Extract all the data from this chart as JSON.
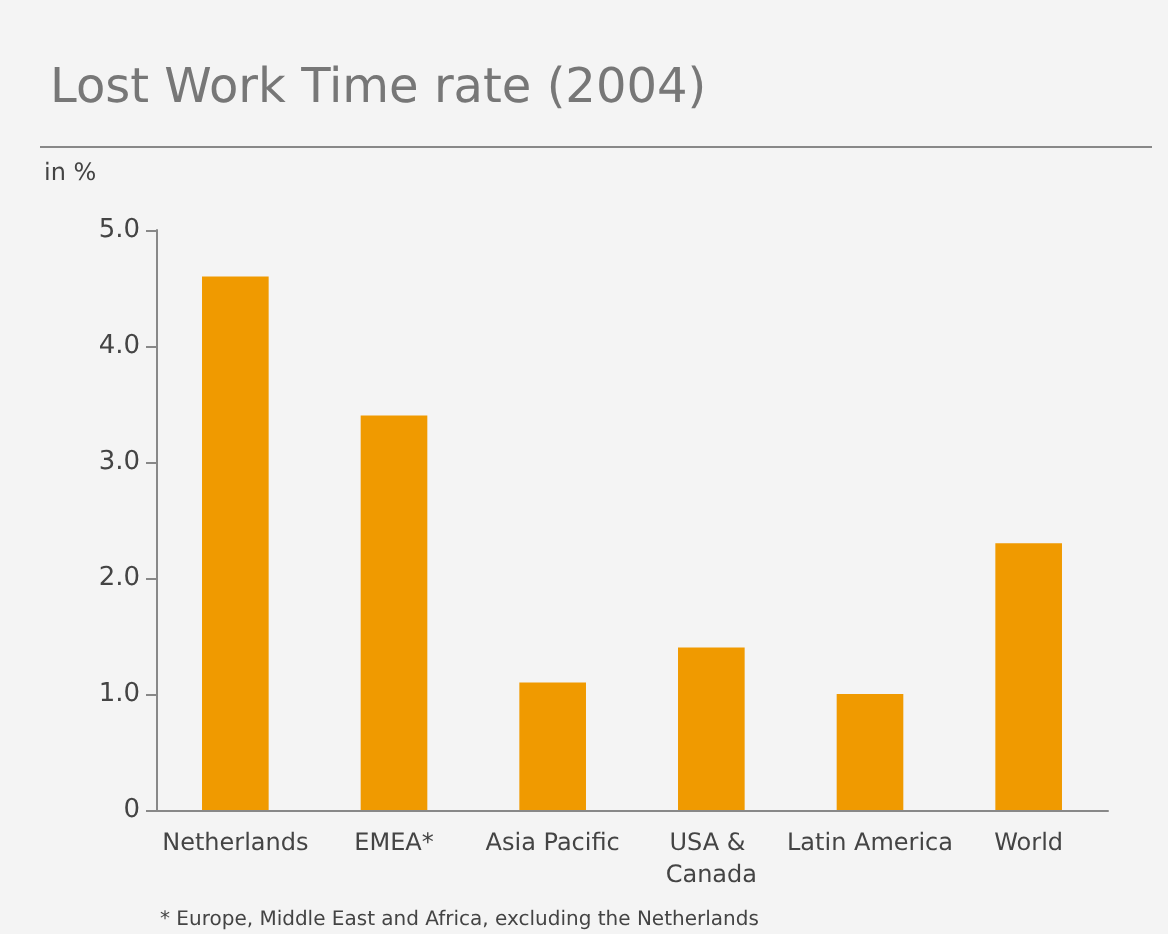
{
  "chart_data": {
    "type": "bar",
    "title": "Lost Work Time rate (2004)",
    "ylabel": "in %",
    "categories": [
      "Netherlands",
      "EMEA*",
      "Asia Pacific",
      "USA & Canada",
      "Latin America",
      "World"
    ],
    "values": [
      4.6,
      3.4,
      1.1,
      1.4,
      1.0,
      2.3
    ],
    "color": "#f09a00",
    "ylim": [
      0,
      5
    ],
    "yticks": [
      0,
      {
        "value": 1,
        "label": "1.0"
      },
      {
        "value": 2,
        "label": "2.0"
      },
      {
        "value": 3,
        "label": "3.0"
      },
      {
        "value": 4,
        "label": "4.0"
      },
      {
        "value": 5,
        "label": "5.0"
      }
    ],
    "grid": false,
    "annotations": [
      "* Europe, Middle East and Africa, excluding the Netherlands"
    ]
  }
}
